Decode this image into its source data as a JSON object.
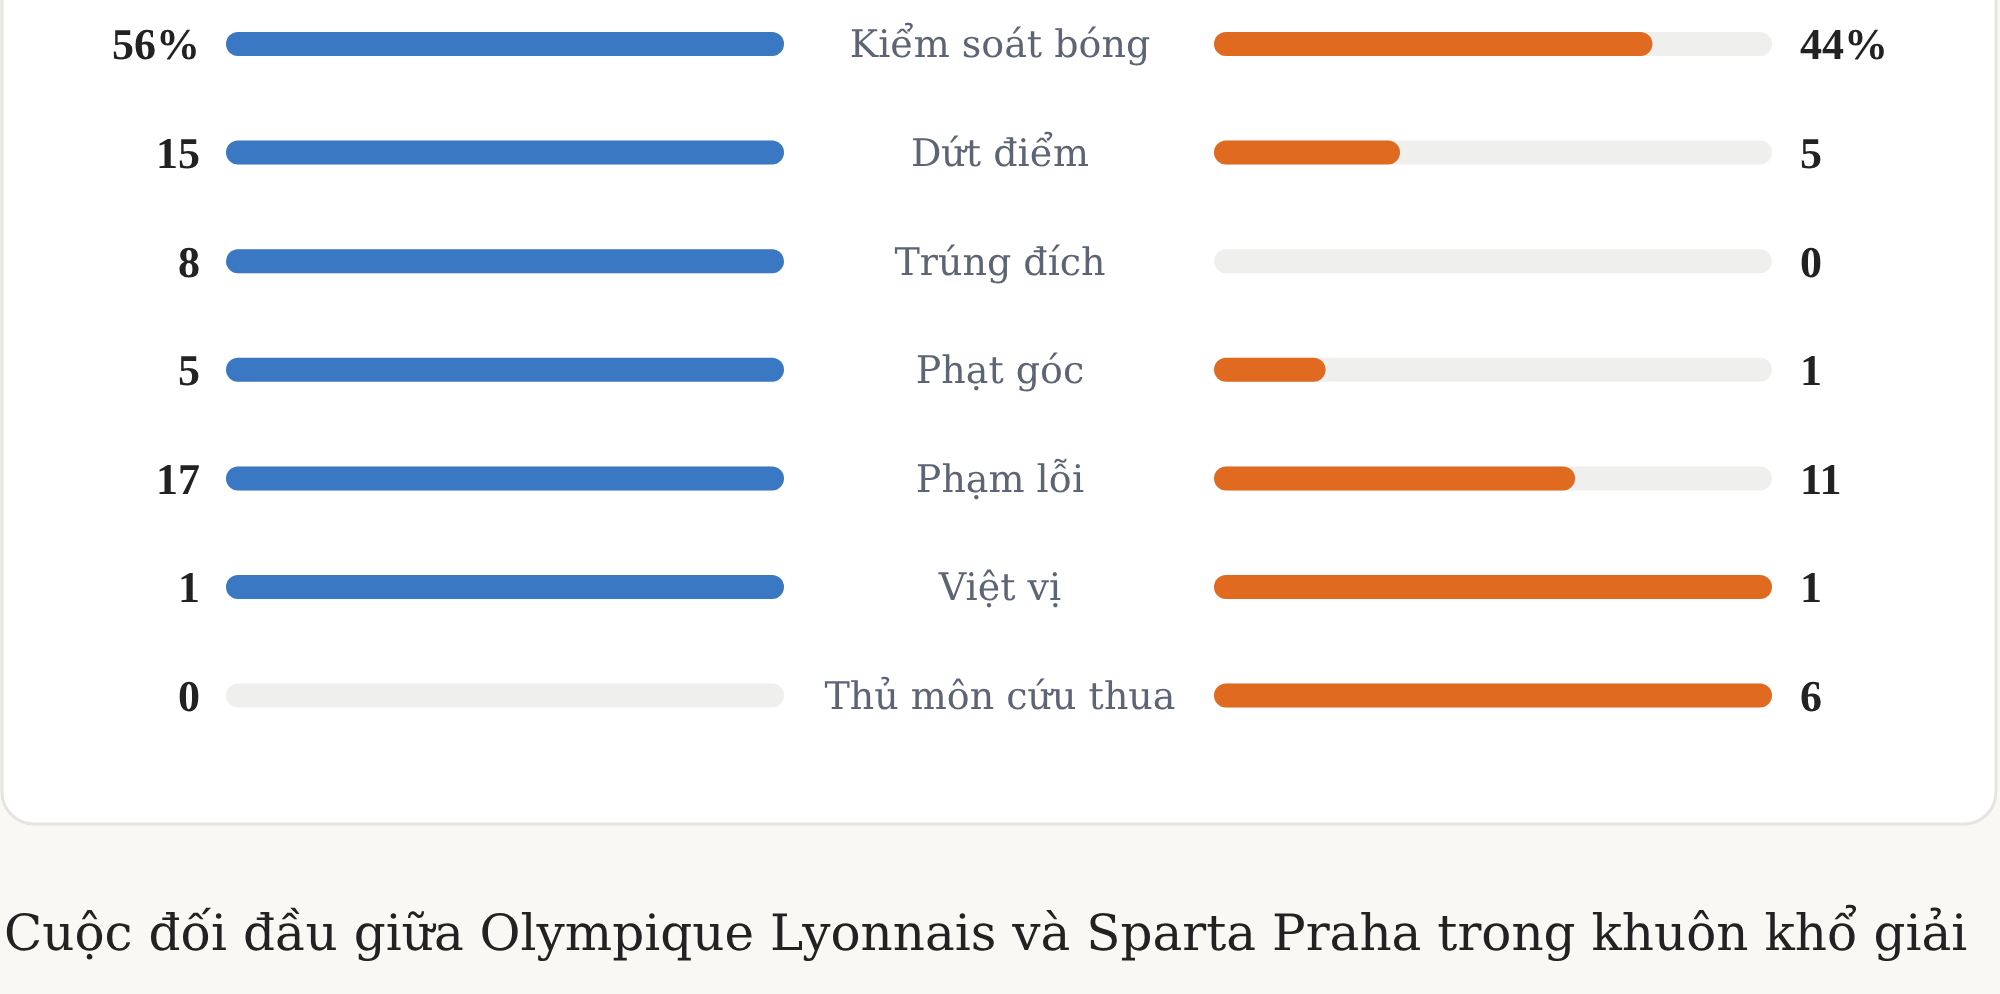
{
  "chart_data": {
    "type": "other",
    "categories": [
      "Kiểm soát bóng",
      "Dứt điểm",
      "Trúng đích",
      "Phạt góc",
      "Phạm lỗi",
      "Việt vị",
      "Thủ môn cứu thua"
    ],
    "series": [
      {
        "color": "#3a78c4",
        "values": [
          56,
          15,
          8,
          5,
          17,
          1,
          0
        ],
        "value_labels": [
          "56%",
          "15",
          "8",
          "5",
          "17",
          "1",
          "0"
        ]
      },
      {
        "color": "#e06a1f",
        "values": [
          44,
          5,
          0,
          1,
          11,
          1,
          6
        ],
        "value_labels": [
          "44%",
          "5",
          "0",
          "1",
          "11",
          "1",
          "6"
        ]
      }
    ],
    "annotations": [
      "Cuộc đối đầu giữa Olympique Lyonnais và Sparta Praha trong khuôn khổ giải"
    ]
  }
}
